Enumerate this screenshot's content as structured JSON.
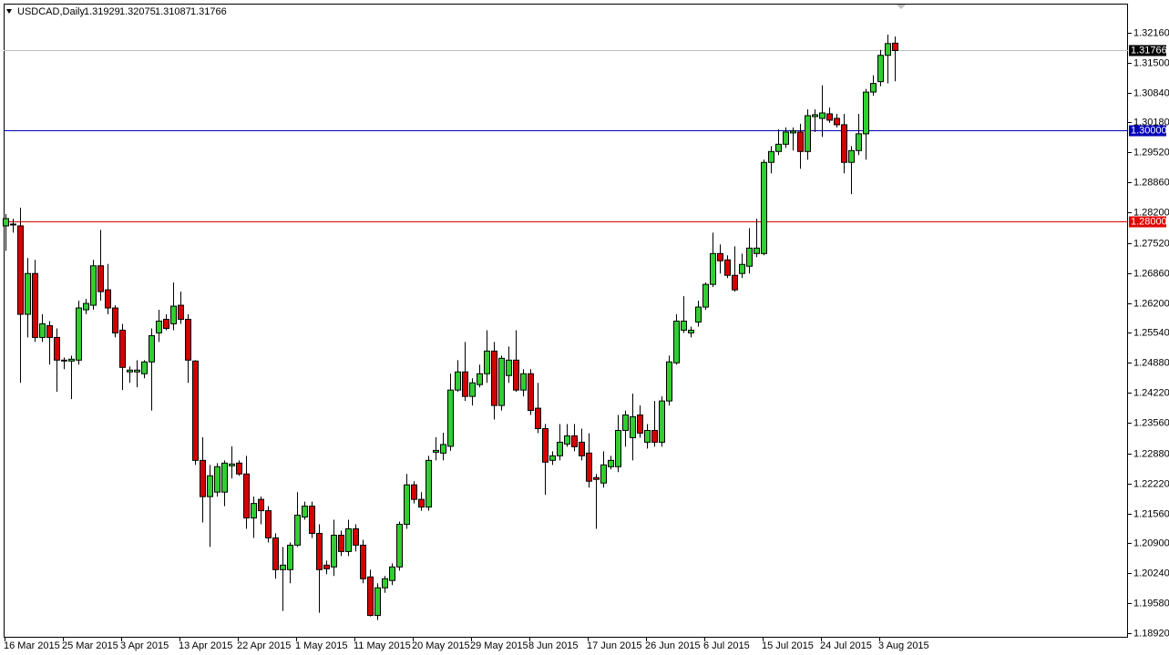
{
  "chart_data": {
    "type": "candlestick",
    "symbol": "USDCAD,Daily",
    "ylim": [
      1.1882,
      1.328
    ],
    "yticks": [
      {
        "value": 1.3216,
        "label": "1.32160"
      },
      {
        "value": 1.315,
        "label": "1.31500"
      },
      {
        "value": 1.3084,
        "label": "1.30840"
      },
      {
        "value": 1.3018,
        "label": "1.30180"
      },
      {
        "value": 1.2952,
        "label": "1.29520"
      },
      {
        "value": 1.2886,
        "label": "1.28860"
      },
      {
        "value": 1.282,
        "label": "1.28200"
      },
      {
        "value": 1.2752,
        "label": "1.27520"
      },
      {
        "value": 1.2686,
        "label": "1.26860"
      },
      {
        "value": 1.262,
        "label": "1.26200"
      },
      {
        "value": 1.2554,
        "label": "1.25540"
      },
      {
        "value": 1.2488,
        "label": "1.24880"
      },
      {
        "value": 1.2422,
        "label": "1.24220"
      },
      {
        "value": 1.2356,
        "label": "1.23560"
      },
      {
        "value": 1.2288,
        "label": "1.22880"
      },
      {
        "value": 1.2222,
        "label": "1.22220"
      },
      {
        "value": 1.2156,
        "label": "1.21560"
      },
      {
        "value": 1.209,
        "label": "1.20900"
      },
      {
        "value": 1.2024,
        "label": "1.20240"
      },
      {
        "value": 1.1958,
        "label": "1.19580"
      },
      {
        "value": 1.1892,
        "label": "1.18920"
      }
    ],
    "hlines": [
      {
        "value": 1.3,
        "label": "1.30000",
        "color": "#0000b4"
      },
      {
        "value": 1.28,
        "label": "1.28000",
        "color": "#e00000"
      }
    ],
    "bull_color": "#32cd32",
    "bear_color": "#d40000",
    "categories": [
      "16 Mar 2015",
      null,
      null,
      null,
      null,
      null,
      null,
      null,
      "25 Mar 2015",
      null,
      null,
      null,
      null,
      null,
      null,
      null,
      "3 Apr 2015",
      null,
      null,
      null,
      null,
      null,
      null,
      null,
      "13 Apr 2015",
      null,
      null,
      null,
      null,
      null,
      null,
      null,
      "22 Apr 2015",
      null,
      null,
      null,
      null,
      null,
      null,
      null,
      "1 May 2015",
      null,
      null,
      null,
      null,
      null,
      null,
      null,
      "11 May 2015",
      null,
      null,
      null,
      null,
      null,
      null,
      null,
      "20 May 2015",
      null,
      null,
      null,
      null,
      null,
      null,
      null,
      "29 May 2015",
      null,
      null,
      null,
      null,
      null,
      null,
      null,
      "8 Jun 2015",
      null,
      null,
      null,
      null,
      null,
      null,
      null,
      "17 Jun 2015",
      null,
      null,
      null,
      null,
      null,
      null,
      null,
      "26 Jun 2015",
      null,
      null,
      null,
      null,
      null,
      null,
      null,
      "6 Jul 2015",
      null,
      null,
      null,
      null,
      null,
      null,
      null,
      "15 Jul 2015",
      null,
      null,
      null,
      null,
      null,
      null,
      null,
      "24 Jul 2015",
      null,
      null,
      null,
      null,
      null,
      null,
      null,
      "3 Aug 2015",
      null,
      null
    ],
    "ohlc": [
      [
        1.279,
        1.2816,
        1.2735,
        1.2806
      ],
      [
        1.2792,
        1.2806,
        1.2775,
        1.2794
      ],
      [
        1.279,
        1.283,
        1.2444,
        1.2595
      ],
      [
        1.2595,
        1.2719,
        1.2544,
        1.2685
      ],
      [
        1.2685,
        1.2715,
        1.2534,
        1.2544
      ],
      [
        1.2544,
        1.2595,
        1.2534,
        1.2574
      ],
      [
        1.257,
        1.258,
        1.2484,
        1.2544
      ],
      [
        1.2544,
        1.2564,
        1.2424,
        1.2494
      ],
      [
        1.2492,
        1.25,
        1.2474,
        1.2494
      ],
      [
        1.2492,
        1.2504,
        1.2408,
        1.2496
      ],
      [
        1.2494,
        1.2625,
        1.2484,
        1.2609
      ],
      [
        1.2605,
        1.2629,
        1.2595,
        1.2619
      ],
      [
        1.2615,
        1.2715,
        1.2605,
        1.2702
      ],
      [
        1.2702,
        1.2781,
        1.2625,
        1.2645
      ],
      [
        1.2649,
        1.2706,
        1.2595,
        1.2609
      ],
      [
        1.2609,
        1.2615,
        1.2544,
        1.2554
      ],
      [
        1.256,
        1.2574,
        1.2428,
        1.2478
      ],
      [
        1.2468,
        1.248,
        1.2444,
        1.2472
      ],
      [
        1.2468,
        1.2494,
        1.2434,
        1.2472
      ],
      [
        1.2464,
        1.2494,
        1.2454,
        1.249
      ],
      [
        1.249,
        1.2564,
        1.2383,
        1.2548
      ],
      [
        1.2554,
        1.2605,
        1.2534,
        1.258
      ],
      [
        1.2584,
        1.2595,
        1.256,
        1.2564
      ],
      [
        1.2574,
        1.2665,
        1.256,
        1.2613
      ],
      [
        1.2615,
        1.2645,
        1.2574,
        1.2584
      ],
      [
        1.2584,
        1.2595,
        1.2444,
        1.2494
      ],
      [
        1.2492,
        1.2494,
        1.2263,
        1.2273
      ],
      [
        1.2273,
        1.2324,
        1.2136,
        1.2193
      ],
      [
        1.2193,
        1.2263,
        1.2082,
        1.2239
      ],
      [
        1.2203,
        1.2267,
        1.2193,
        1.2259
      ],
      [
        1.2203,
        1.2273,
        1.2172,
        1.2267
      ],
      [
        1.2261,
        1.2304,
        1.2233,
        1.2265
      ],
      [
        1.2267,
        1.2273,
        1.2239,
        1.2243
      ],
      [
        1.2243,
        1.2283,
        1.2122,
        1.2146
      ],
      [
        1.2146,
        1.2193,
        1.2102,
        1.2178
      ],
      [
        1.2187,
        1.2193,
        1.2132,
        1.2162
      ],
      [
        1.2162,
        1.2172,
        1.2092,
        1.2102
      ],
      [
        1.2102,
        1.2112,
        1.2012,
        1.2032
      ],
      [
        1.2032,
        1.2082,
        1.1941,
        1.2042
      ],
      [
        1.2032,
        1.2092,
        1.2002,
        1.2086
      ],
      [
        1.2086,
        1.2203,
        1.2082,
        1.2152
      ],
      [
        1.2148,
        1.2182,
        1.2142,
        1.2172
      ],
      [
        1.2172,
        1.2182,
        1.2102,
        1.2112
      ],
      [
        1.2112,
        1.2132,
        1.1937,
        1.2032
      ],
      [
        1.2042,
        1.2052,
        1.2022,
        1.2034
      ],
      [
        1.2038,
        1.2142,
        1.2018,
        1.2108
      ],
      [
        1.2108,
        1.2118,
        1.2062,
        1.2072
      ],
      [
        1.2072,
        1.2142,
        1.2062,
        1.2122
      ],
      [
        1.2122,
        1.2132,
        1.2072,
        1.2086
      ],
      [
        1.2086,
        1.2098,
        1.2002,
        1.2012
      ],
      [
        1.2016,
        1.2032,
        1.1929,
        1.1931
      ],
      [
        1.1931,
        1.2002,
        1.1921,
        1.1992
      ],
      [
        1.1992,
        1.2018,
        1.1981,
        1.2012
      ],
      [
        1.2008,
        1.2046,
        1.1998,
        1.2038
      ],
      [
        1.2038,
        1.2138,
        1.203,
        1.2132
      ],
      [
        1.2132,
        1.2243,
        1.2122,
        1.2219
      ],
      [
        1.2219,
        1.2227,
        1.2178,
        1.2187
      ],
      [
        1.2187,
        1.2203,
        1.2162,
        1.217
      ],
      [
        1.217,
        1.2283,
        1.2162,
        1.2273
      ],
      [
        1.2291,
        1.2324,
        1.2273,
        1.2295
      ],
      [
        1.2289,
        1.2334,
        1.2273,
        1.2308
      ],
      [
        1.2304,
        1.2464,
        1.2294,
        1.2428
      ],
      [
        1.2428,
        1.2494,
        1.2424,
        1.2468
      ],
      [
        1.2468,
        1.2534,
        1.2404,
        1.2414
      ],
      [
        1.2414,
        1.2454,
        1.2394,
        1.2444
      ],
      [
        1.244,
        1.2484,
        1.2434,
        1.2464
      ],
      [
        1.2464,
        1.256,
        1.2444,
        1.2514
      ],
      [
        1.2514,
        1.2534,
        1.2363,
        1.2394
      ],
      [
        1.2394,
        1.2504,
        1.2383,
        1.2498
      ],
      [
        1.246,
        1.2524,
        1.2444,
        1.2494
      ],
      [
        1.2494,
        1.256,
        1.2424,
        1.2428
      ],
      [
        1.2428,
        1.2474,
        1.2414,
        1.2464
      ],
      [
        1.2464,
        1.2474,
        1.2373,
        1.2383
      ],
      [
        1.2388,
        1.2444,
        1.2333,
        1.2343
      ],
      [
        1.2343,
        1.2353,
        1.2197,
        1.2269
      ],
      [
        1.2273,
        1.2293,
        1.2263,
        1.2283
      ],
      [
        1.2283,
        1.2353,
        1.2273,
        1.2313
      ],
      [
        1.2309,
        1.2353,
        1.2303,
        1.2327
      ],
      [
        1.2327,
        1.2353,
        1.2293,
        1.2303
      ],
      [
        1.2313,
        1.2343,
        1.2273,
        1.2283
      ],
      [
        1.2289,
        1.2333,
        1.2213,
        1.2227
      ],
      [
        1.2235,
        1.2243,
        1.2122,
        1.2231
      ],
      [
        1.2223,
        1.2293,
        1.2213,
        1.2263
      ],
      [
        1.2259,
        1.2283,
        1.2253,
        1.2273
      ],
      [
        1.2259,
        1.2373,
        1.2247,
        1.2339
      ],
      [
        1.2339,
        1.2383,
        1.2303,
        1.2373
      ],
      [
        1.2323,
        1.242,
        1.2273,
        1.2369
      ],
      [
        1.2373,
        1.2394,
        1.2323,
        1.2333
      ],
      [
        1.2313,
        1.2353,
        1.2299,
        1.2339
      ],
      [
        1.2339,
        1.2404,
        1.2303,
        1.2313
      ],
      [
        1.2313,
        1.2414,
        1.2303,
        1.2404
      ],
      [
        1.2404,
        1.2504,
        1.2394,
        1.249
      ],
      [
        1.2488,
        1.2595,
        1.2484,
        1.258
      ],
      [
        1.256,
        1.2635,
        1.2554,
        1.258
      ],
      [
        1.2554,
        1.2568,
        1.2544,
        1.256
      ],
      [
        1.2578,
        1.2625,
        1.2568,
        1.2611
      ],
      [
        1.2611,
        1.2665,
        1.2605,
        1.2661
      ],
      [
        1.2661,
        1.2775,
        1.2655,
        1.2729
      ],
      [
        1.2729,
        1.2749,
        1.2685,
        1.2713
      ],
      [
        1.2715,
        1.2725,
        1.2675,
        1.2681
      ],
      [
        1.2681,
        1.2745,
        1.2645,
        1.2649
      ],
      [
        1.2685,
        1.2729,
        1.2675,
        1.2705
      ],
      [
        1.2701,
        1.2785,
        1.2685,
        1.2741
      ],
      [
        1.2729,
        1.2806,
        1.2721,
        1.2741
      ],
      [
        1.2729,
        1.2936,
        1.2725,
        1.293
      ],
      [
        1.293,
        1.2966,
        1.2906,
        1.2954
      ],
      [
        1.2954,
        1.3003,
        1.2946,
        1.297
      ],
      [
        1.297,
        1.3007,
        1.2962,
        1.2997
      ],
      [
        1.2995,
        1.3007,
        1.2956,
        1.2999
      ],
      [
        1.2997,
        1.3015,
        1.2916,
        1.2954
      ],
      [
        1.2954,
        1.3047,
        1.2936,
        1.3033
      ],
      [
        1.3031,
        1.3047,
        1.2997,
        1.3035
      ],
      [
        1.3027,
        1.31,
        1.2986,
        1.3039
      ],
      [
        1.3037,
        1.3051,
        1.3017,
        1.3023
      ],
      [
        1.3027,
        1.3037,
        1.3007,
        1.3013
      ],
      [
        1.3013,
        1.3037,
        1.2906,
        1.293
      ],
      [
        1.293,
        1.2966,
        1.286,
        1.2956
      ],
      [
        1.2956,
        1.3037,
        1.2946,
        1.2993
      ],
      [
        1.2993,
        1.3092,
        1.2936,
        1.3085
      ],
      [
        1.3085,
        1.3122,
        1.3077,
        1.3104
      ],
      [
        1.3108,
        1.3178,
        1.3098,
        1.3166
      ],
      [
        1.3166,
        1.3212,
        1.3104,
        1.3192
      ],
      [
        1.31929,
        1.32075,
        1.31087,
        1.31766
      ]
    ]
  }
}
